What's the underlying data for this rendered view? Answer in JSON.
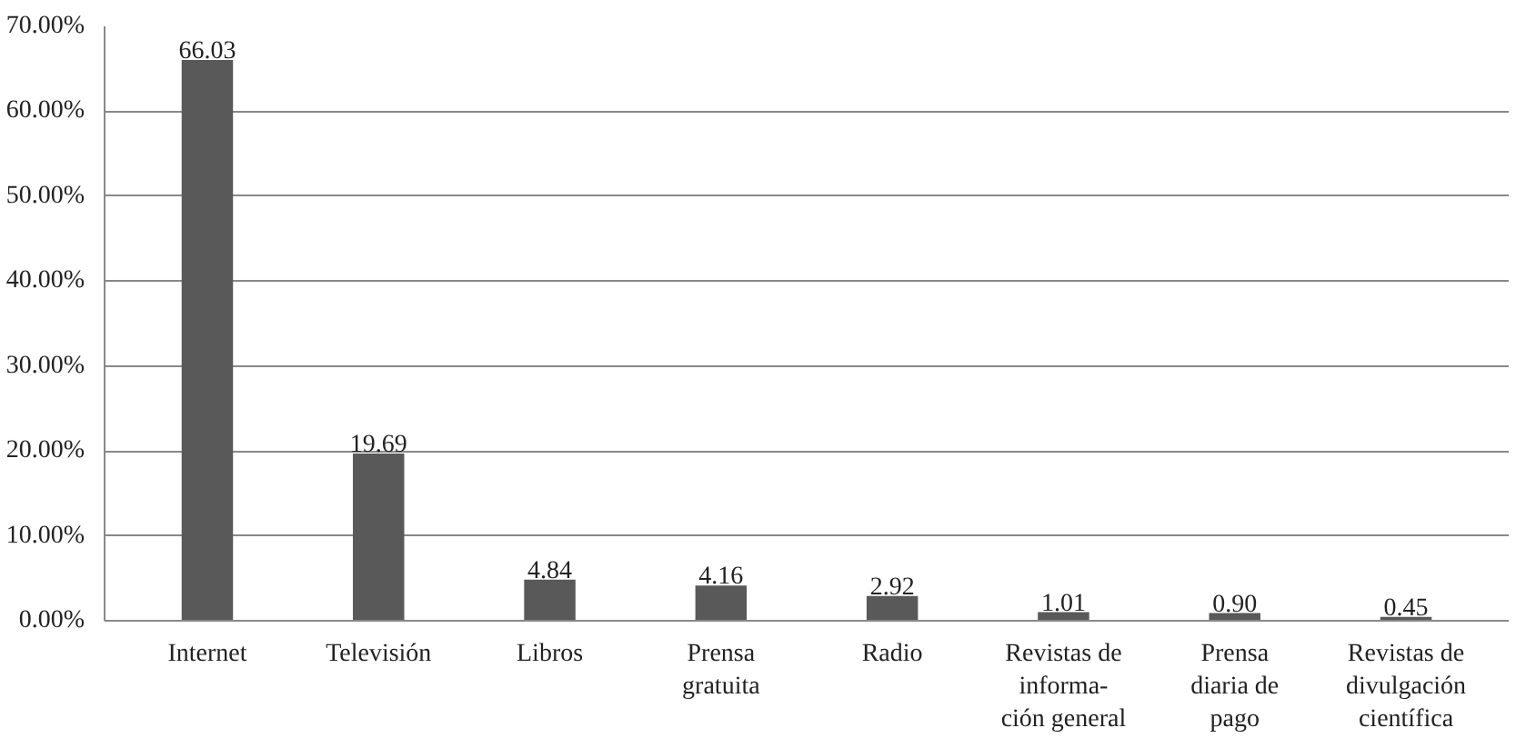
{
  "chart_data": {
    "type": "bar",
    "categories": [
      "Internet",
      "Televisión",
      "Libros",
      "Prensa\ngratuita",
      "Radio",
      "Revistas de\ninforma-\nción general",
      "Prensa\ndiaria de\npago",
      "Revistas de\ndivulgación\ncientífica"
    ],
    "values": [
      66.03,
      19.69,
      4.84,
      4.16,
      2.92,
      1.01,
      0.9,
      0.45
    ],
    "value_labels": [
      "66.03",
      "19.69",
      "4.84",
      "4.16",
      "2.92",
      "1.01",
      "0.90",
      "0.45"
    ],
    "color": "#595959",
    "ylim": [
      0,
      70
    ],
    "yticks": [
      {
        "value": 0,
        "label": "0.00%"
      },
      {
        "value": 10,
        "label": "10.00%"
      },
      {
        "value": 20,
        "label": "20.00%"
      },
      {
        "value": 30,
        "label": "30.00%"
      },
      {
        "value": 40,
        "label": "40.00%"
      },
      {
        "value": 50,
        "label": "50.00%"
      },
      {
        "value": 60,
        "label": "60.00%"
      },
      {
        "value": 70,
        "label": "70.00%"
      }
    ],
    "grid": "y"
  }
}
